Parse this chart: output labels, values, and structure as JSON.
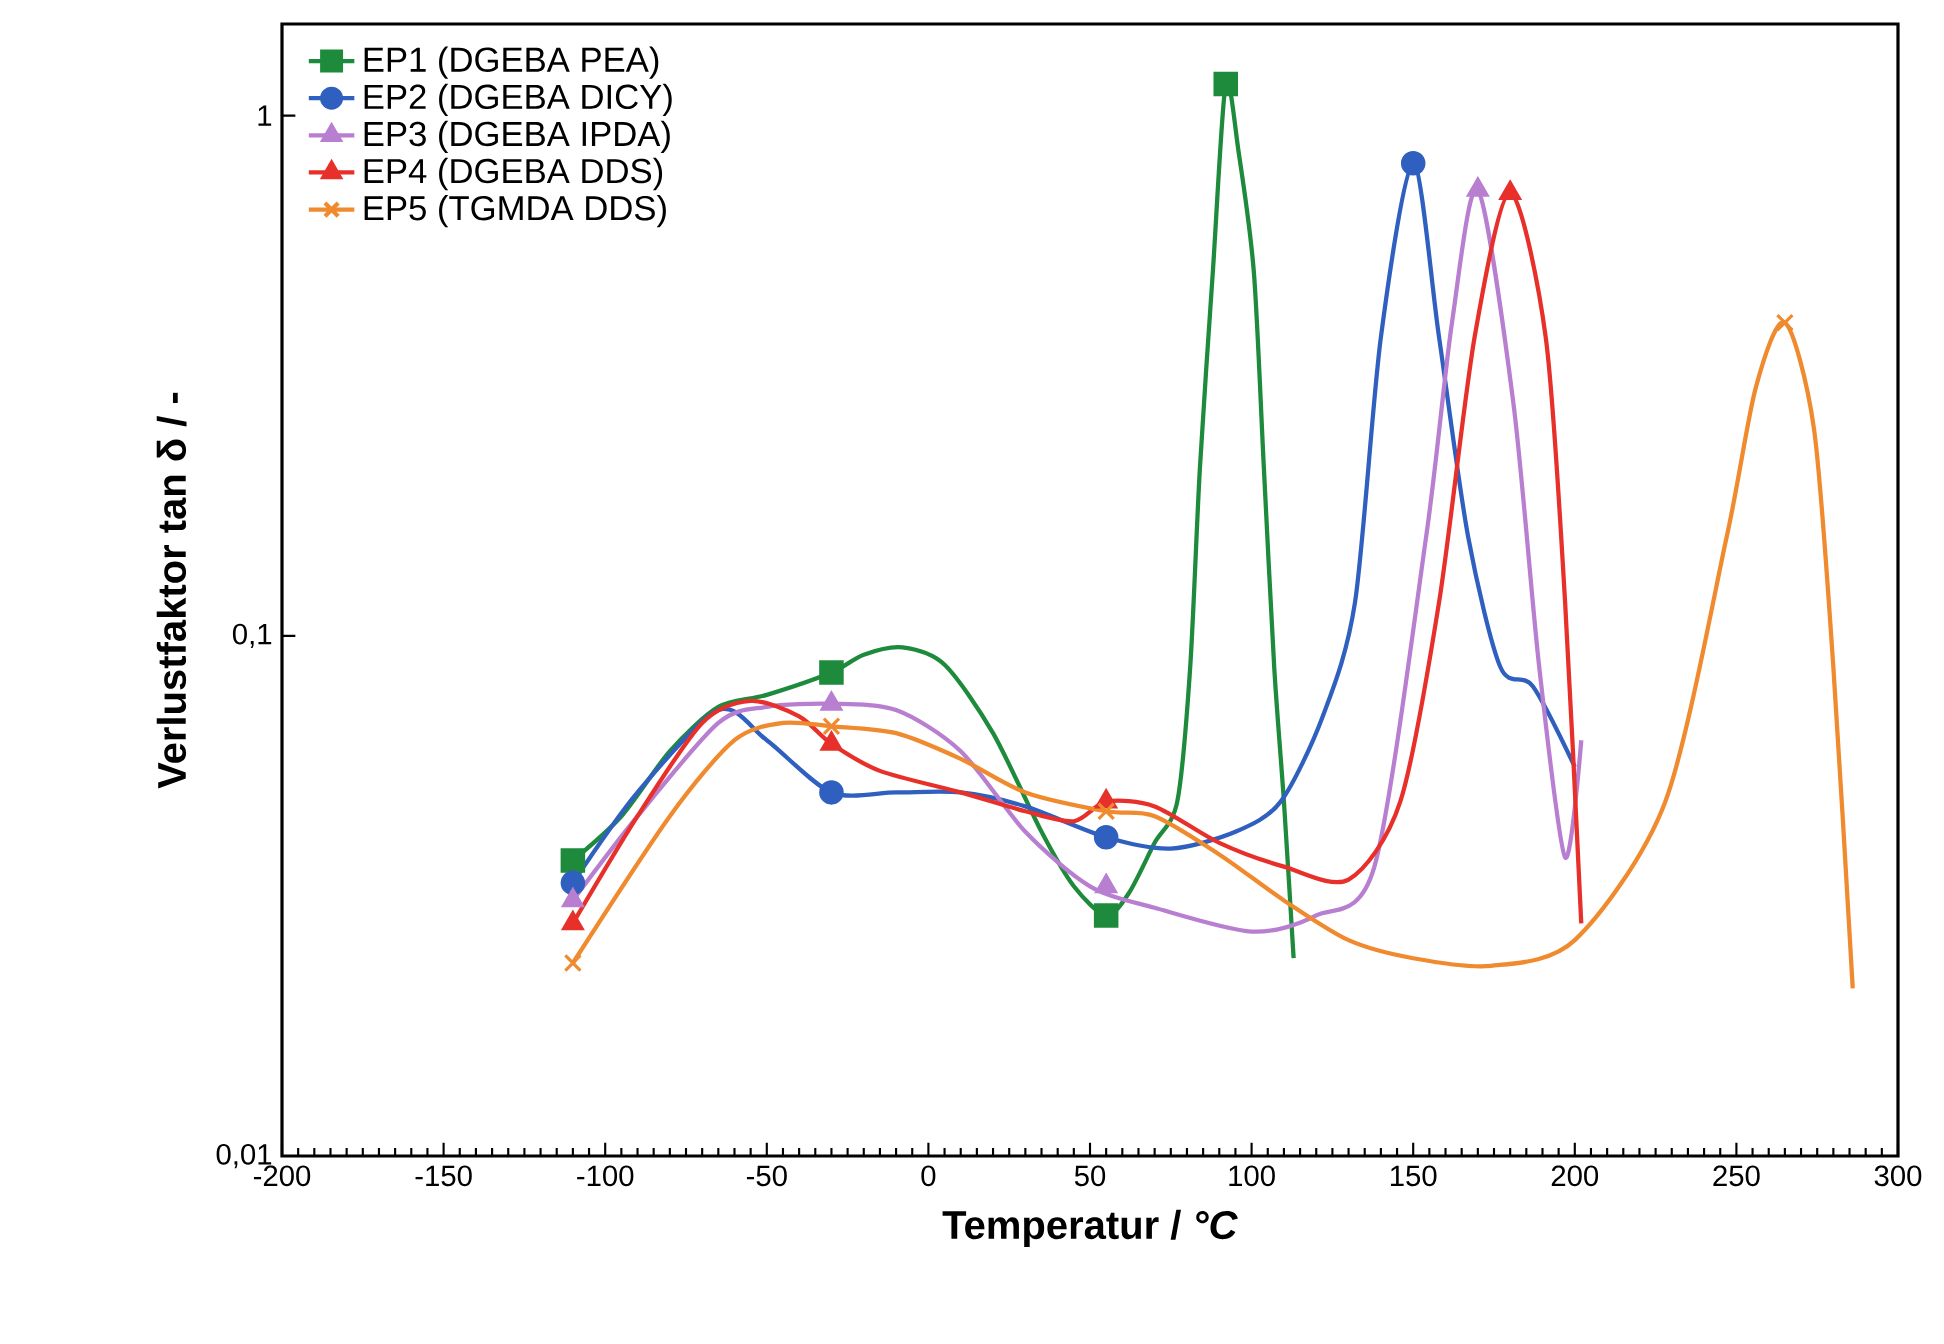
{
  "chart_data": {
    "type": "line",
    "xlabel": "Temperatur / *°C*",
    "ylabel": "Verlustfaktor tan δ / -",
    "xlim": [
      -200,
      300
    ],
    "xticks": [
      -200,
      -150,
      -100,
      -50,
      0,
      50,
      100,
      150,
      200,
      250,
      300
    ],
    "ylim": [
      0.01,
      1.5
    ],
    "yticks": [
      {
        "value": 0.01,
        "label": "0,01"
      },
      {
        "value": 0.1,
        "label": "0,1"
      },
      {
        "value": 1,
        "label": "1"
      }
    ],
    "log": "y",
    "legend": "top left",
    "series": [
      {
        "name": "EP1 (DGEBA PEA)",
        "color": "#1e8a3c",
        "x": [
          -110,
          -95,
          -80,
          -65,
          -50,
          -30,
          -20,
          -8,
          5,
          20,
          35,
          45,
          55,
          62,
          70,
          77,
          81,
          84,
          88,
          92,
          96,
          100.7,
          103.8,
          107,
          110,
          113
        ],
        "values": [
          0.037,
          0.045,
          0.06,
          0.073,
          0.077,
          0.085,
          0.092,
          0.095,
          0.088,
          0.065,
          0.042,
          0.033,
          0.029,
          0.032,
          0.04,
          0.048,
          0.087,
          0.21,
          0.5,
          1.15,
          0.85,
          0.5,
          0.21,
          0.087,
          0.048,
          0.024
        ]
      },
      {
        "type": "scatter",
        "color": "#1e8a3c",
        "marker": "square",
        "x": [
          -110,
          -30,
          55,
          92
        ],
        "values": [
          0.037,
          0.085,
          0.029,
          1.15
        ]
      },
      {
        "name": "EP2 (DGEBA DICY)",
        "color": "#2f5fbf",
        "x": [
          -110,
          -90,
          -65,
          -50,
          -30,
          -10,
          10,
          30,
          55,
          75,
          95,
          109,
          122,
          132,
          140,
          150,
          158,
          167,
          177,
          187,
          200
        ],
        "values": [
          0.0335,
          0.05,
          0.072,
          0.063,
          0.05,
          0.05,
          0.05,
          0.047,
          0.041,
          0.039,
          0.042,
          0.048,
          0.07,
          0.116,
          0.375,
          0.81,
          0.375,
          0.155,
          0.087,
          0.08,
          0.056
        ]
      },
      {
        "type": "scatter",
        "color": "#2f5fbf",
        "marker": "circle",
        "x": [
          -110,
          -30,
          55,
          150
        ],
        "values": [
          0.0335,
          0.05,
          0.041,
          0.81
        ]
      },
      {
        "name": "EP3 (DGEBA IPDA)",
        "color": "#b87fd0",
        "x": [
          -110,
          -90,
          -65,
          -50,
          -30,
          -10,
          10,
          30,
          50,
          70,
          100,
          120,
          138,
          154,
          162,
          170,
          181,
          189,
          197,
          202
        ],
        "values": [
          0.031,
          0.045,
          0.068,
          0.073,
          0.074,
          0.072,
          0.06,
          0.042,
          0.033,
          0.03,
          0.027,
          0.029,
          0.036,
          0.155,
          0.4,
          0.72,
          0.28,
          0.087,
          0.0375,
          0.063
        ]
      },
      {
        "type": "scatter",
        "color": "#b87fd0",
        "marker": "triangle",
        "x": [
          -110,
          -30,
          55,
          170
        ],
        "values": [
          0.031,
          0.074,
          0.033,
          0.72
        ]
      },
      {
        "name": "EP4 (DGEBA DDS)",
        "color": "#e8302a",
        "x": [
          -110,
          -90,
          -70,
          -55,
          -40,
          -30,
          -15,
          10,
          30,
          45,
          55,
          70,
          90,
          110,
          130,
          146,
          158,
          169,
          180,
          191,
          197,
          202
        ],
        "values": [
          0.028,
          0.045,
          0.068,
          0.075,
          0.07,
          0.062,
          0.055,
          0.05,
          0.046,
          0.044,
          0.048,
          0.047,
          0.04,
          0.036,
          0.034,
          0.048,
          0.116,
          0.375,
          0.71,
          0.375,
          0.116,
          0.028
        ]
      },
      {
        "type": "scatter",
        "color": "#e8302a",
        "marker": "triangle",
        "x": [
          -110,
          -30,
          55,
          180
        ],
        "values": [
          0.028,
          0.062,
          0.048,
          0.71
        ]
      },
      {
        "name": "EP5 (TGMDA DDS)",
        "color": "#f08a2e",
        "x": [
          -110,
          -80,
          -60,
          -45,
          -30,
          -10,
          10,
          30,
          55,
          70,
          90,
          110,
          130,
          150,
          174,
          200,
          228,
          247,
          256,
          265,
          274,
          280,
          286
        ],
        "values": [
          0.0235,
          0.045,
          0.063,
          0.068,
          0.067,
          0.065,
          0.058,
          0.05,
          0.046,
          0.045,
          0.038,
          0.031,
          0.026,
          0.024,
          0.0232,
          0.026,
          0.048,
          0.155,
          0.3,
          0.4,
          0.25,
          0.087,
          0.021
        ]
      },
      {
        "type": "scatter",
        "color": "#f08a2e",
        "marker": "cross",
        "x": [
          -110,
          -30,
          55,
          265
        ],
        "values": [
          0.0235,
          0.067,
          0.046,
          0.4
        ]
      }
    ]
  }
}
